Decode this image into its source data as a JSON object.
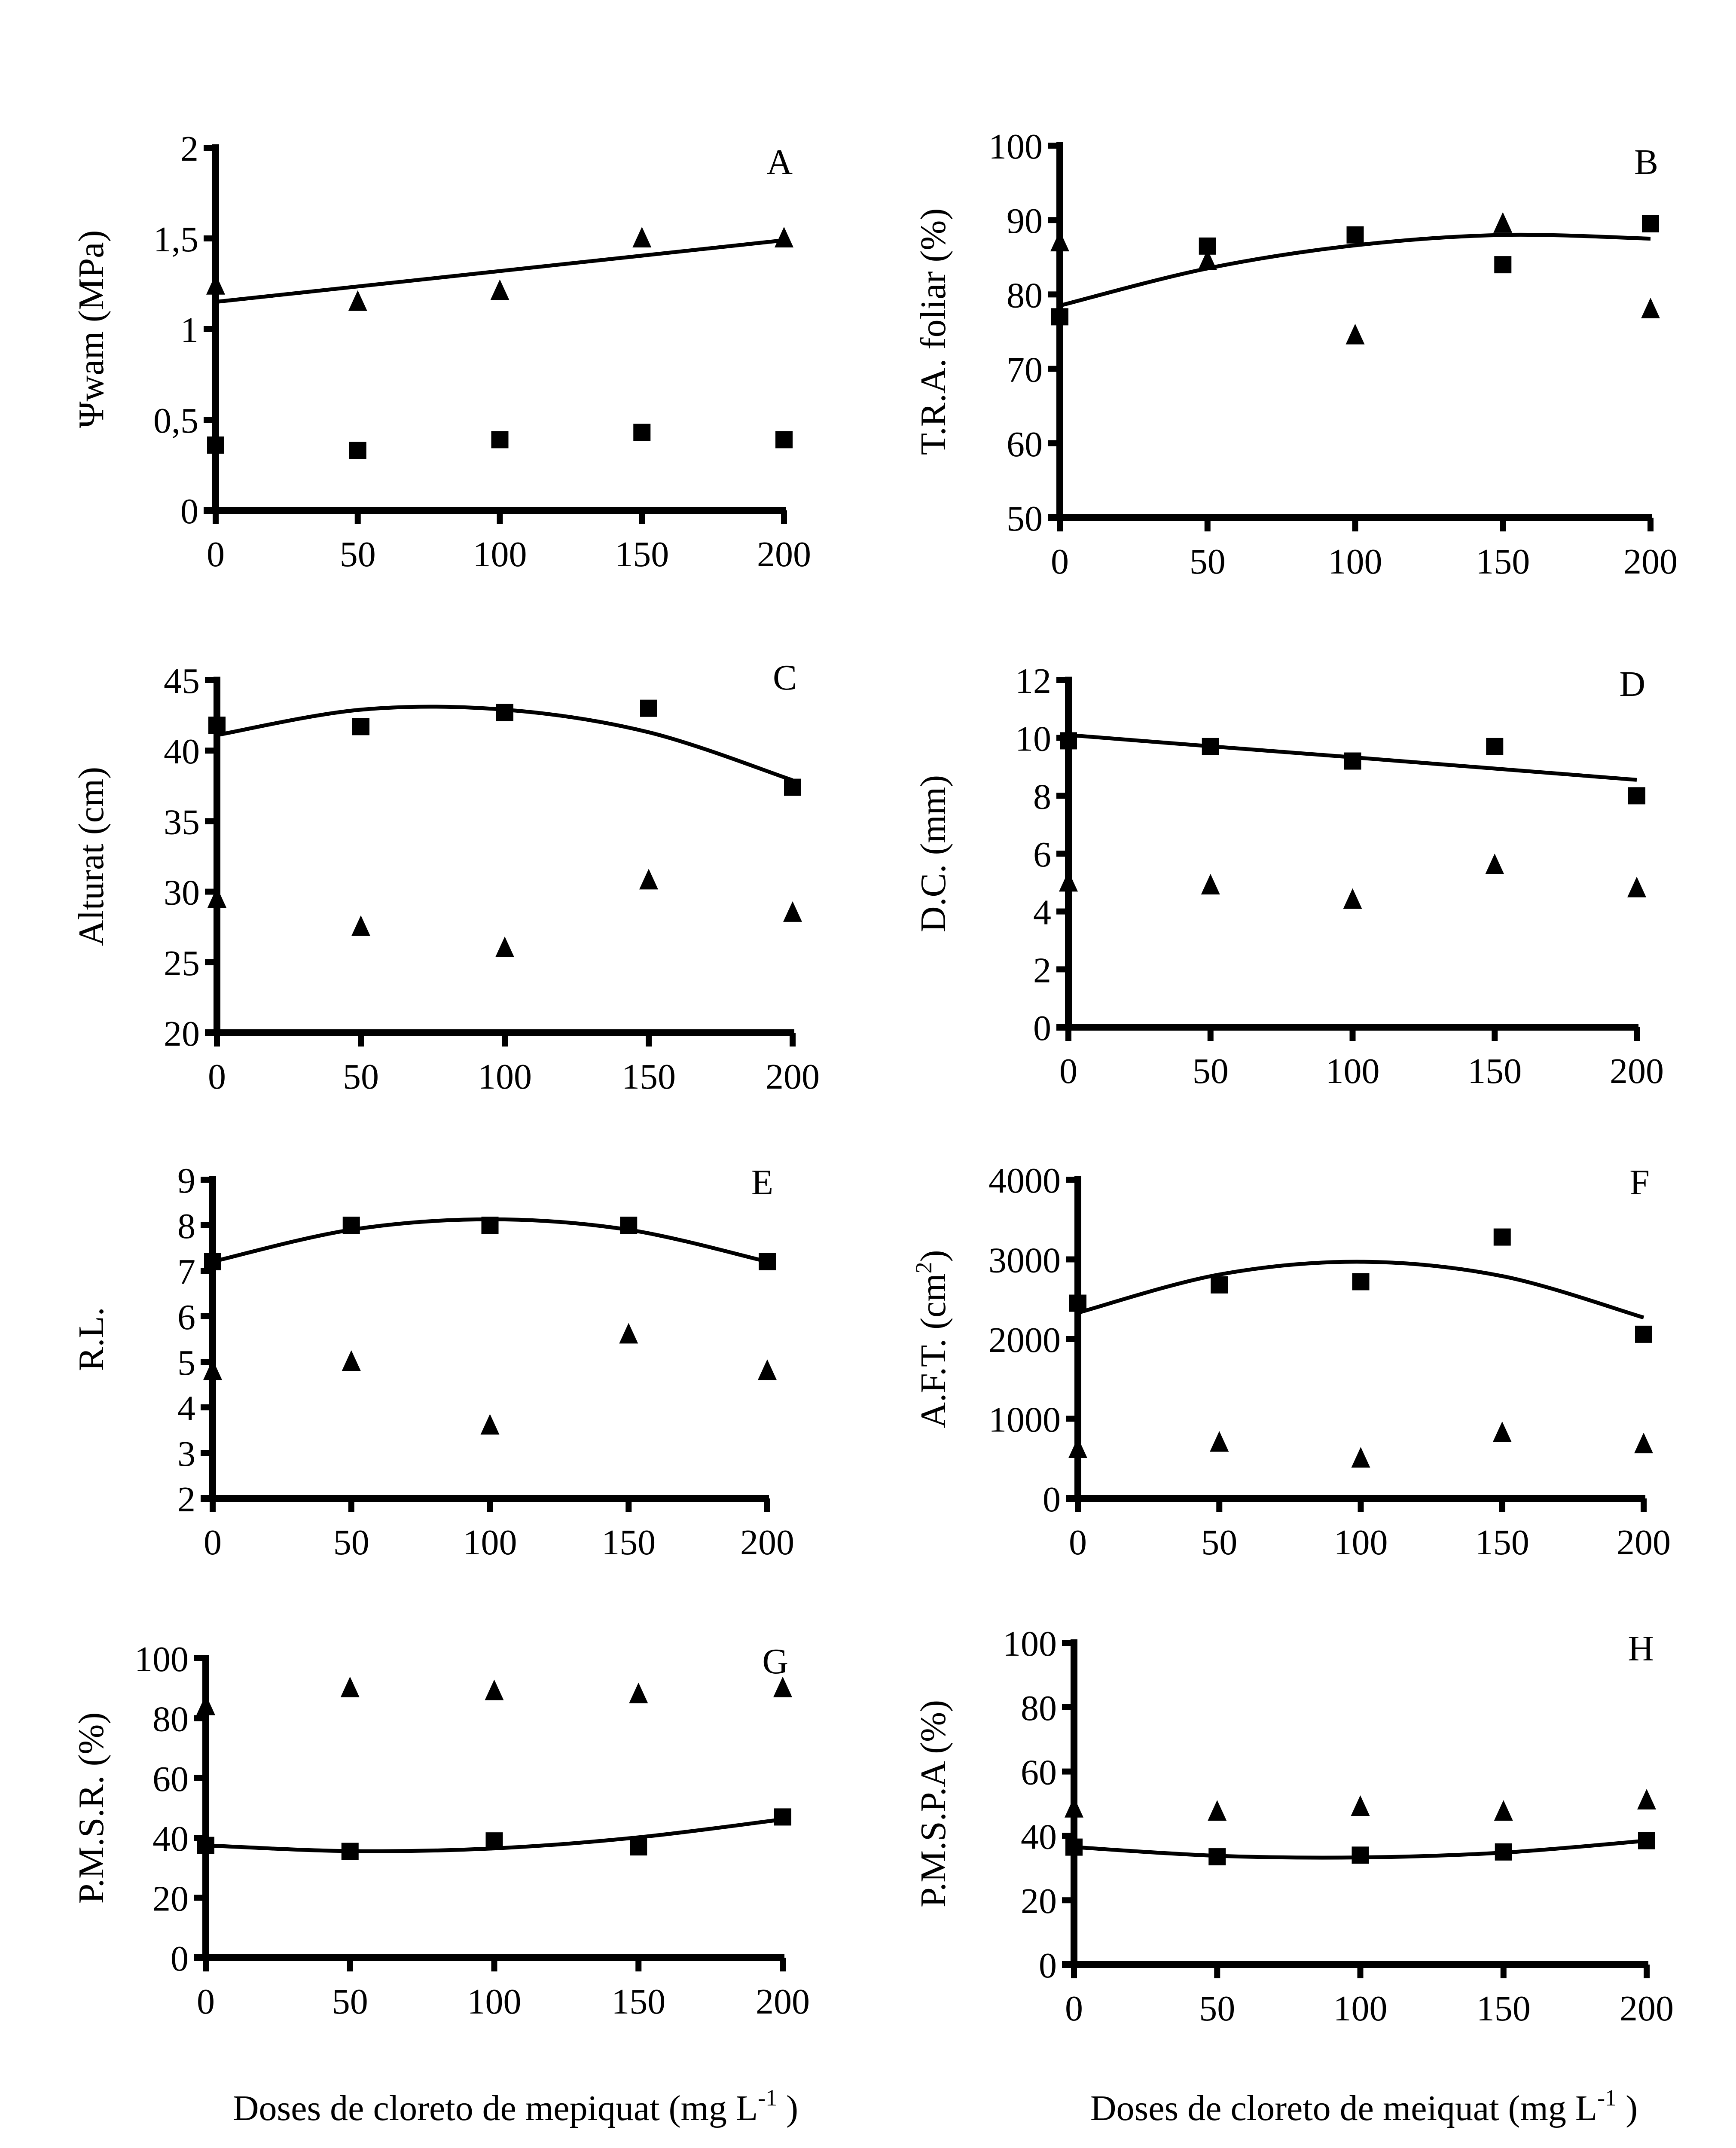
{
  "figure": {
    "x_titles": [
      {
        "text": "Doses de cloreto de mepiquat (mg L",
        "sup": "-1",
        "close": " )"
      },
      {
        "text": "Doses de cloreto de meiquat (mg L",
        "sup": "-1",
        "close": " )"
      }
    ]
  },
  "chart_data": [
    {
      "panel": "A",
      "type": "scatter",
      "ylabel": "Ψwam (MPa)",
      "x": [
        0,
        50,
        100,
        150,
        200
      ],
      "xticks": [
        "0",
        "50",
        "100",
        "150",
        "200"
      ],
      "ylim": [
        0,
        2
      ],
      "yticks": [
        "0",
        "0,5",
        "1",
        "1,5",
        "2"
      ],
      "ytick_values": [
        0,
        0.5,
        1,
        1.5,
        2
      ],
      "series": [
        {
          "name": "triangle",
          "marker": "triangle",
          "values": [
            1.24,
            1.15,
            1.21,
            1.5,
            1.5
          ]
        },
        {
          "name": "square",
          "marker": "square",
          "values": [
            0.36,
            0.33,
            0.39,
            0.43,
            0.39
          ]
        }
      ],
      "fit": {
        "series": "triangle",
        "kind": "linear",
        "values": [
          1.15,
          1.235,
          1.32,
          1.405,
          1.49
        ]
      },
      "grid": false
    },
    {
      "panel": "B",
      "type": "scatter",
      "ylabel": "T.R.A. foliar (%)",
      "x": [
        0,
        50,
        100,
        150,
        200
      ],
      "xticks": [
        "0",
        "50",
        "100",
        "150",
        "200"
      ],
      "ylim": [
        50,
        100
      ],
      "yticks": [
        "50",
        "60",
        "70",
        "80",
        "90",
        "100"
      ],
      "ytick_values": [
        50,
        60,
        70,
        80,
        90,
        100
      ],
      "series": [
        {
          "name": "square",
          "marker": "square",
          "values": [
            77,
            86.5,
            88,
            84,
            89.5
          ]
        },
        {
          "name": "triangle",
          "marker": "triangle",
          "values": [
            87,
            84.5,
            74.5,
            89.5,
            78
          ]
        }
      ],
      "fit": {
        "series": "square",
        "kind": "quadratic",
        "values": [
          78.5,
          83.5,
          86.6,
          88,
          87.5
        ]
      },
      "grid": false
    },
    {
      "panel": "C",
      "type": "scatter",
      "ylabel": "Alturat (cm)",
      "x": [
        0,
        50,
        100,
        150,
        200
      ],
      "xticks": [
        "0",
        "50",
        "100",
        "150",
        "200"
      ],
      "ylim": [
        20,
        45
      ],
      "yticks": [
        "20",
        "25",
        "30",
        "35",
        "40",
        "45"
      ],
      "ytick_values": [
        20,
        25,
        30,
        35,
        40,
        45
      ],
      "series": [
        {
          "name": "square",
          "marker": "square",
          "values": [
            41.8,
            41.7,
            42.7,
            43,
            37.4
          ]
        },
        {
          "name": "triangle",
          "marker": "triangle",
          "values": [
            29.5,
            27.5,
            26,
            30.8,
            28.5
          ]
        }
      ],
      "fit": {
        "series": "square",
        "kind": "quadratic",
        "values": [
          41.1,
          42.9,
          42.9,
          41.3,
          37.9
        ]
      },
      "grid": false
    },
    {
      "panel": "D",
      "type": "scatter",
      "ylabel": "D.C. (mm)",
      "x": [
        0,
        50,
        100,
        150,
        200
      ],
      "xticks": [
        "0",
        "50",
        "100",
        "150",
        "200"
      ],
      "ylim": [
        0,
        12
      ],
      "yticks": [
        "0",
        "2",
        "4",
        "6",
        "8",
        "10",
        "12"
      ],
      "ytick_values": [
        0,
        2,
        4,
        6,
        8,
        10,
        12
      ],
      "series": [
        {
          "name": "square",
          "marker": "square",
          "values": [
            9.9,
            9.7,
            9.2,
            9.7,
            8.0
          ]
        },
        {
          "name": "triangle",
          "marker": "triangle",
          "values": [
            5.0,
            4.9,
            4.4,
            5.6,
            4.8
          ]
        }
      ],
      "fit": {
        "series": "square",
        "kind": "linear",
        "values": [
          10.1,
          9.71,
          9.33,
          8.94,
          8.55
        ]
      },
      "grid": false
    },
    {
      "panel": "E",
      "type": "scatter",
      "ylabel": "R.L.",
      "x": [
        0,
        50,
        100,
        150,
        200
      ],
      "xticks": [
        "0",
        "50",
        "100",
        "150",
        "200"
      ],
      "ylim": [
        2,
        9
      ],
      "yticks": [
        "2",
        "3",
        "4",
        "5",
        "6",
        "7",
        "8",
        "9"
      ],
      "ytick_values": [
        2,
        3,
        4,
        5,
        6,
        7,
        8,
        9
      ],
      "series": [
        {
          "name": "square",
          "marker": "square",
          "values": [
            7.2,
            8.0,
            8.0,
            8.0,
            7.2
          ]
        },
        {
          "name": "triangle",
          "marker": "triangle",
          "values": [
            4.8,
            5.0,
            3.6,
            5.6,
            4.8
          ]
        }
      ],
      "fit": {
        "series": "square",
        "kind": "quadratic",
        "values": [
          7.2,
          7.9,
          8.13,
          7.9,
          7.2
        ]
      },
      "grid": false
    },
    {
      "panel": "F",
      "type": "scatter",
      "ylabel": "A.F.T. (cm",
      "ylabel_sup": "2",
      "ylabel_close": ")",
      "x": [
        0,
        50,
        100,
        150,
        200
      ],
      "xticks": [
        "0",
        "50",
        "100",
        "150",
        "200"
      ],
      "ylim": [
        0,
        4000
      ],
      "yticks": [
        "0",
        "1000",
        "2000",
        "3000",
        "4000"
      ],
      "ytick_values": [
        0,
        1000,
        2000,
        3000,
        4000
      ],
      "series": [
        {
          "name": "square",
          "marker": "square",
          "values": [
            2450,
            2680,
            2720,
            3280,
            2060
          ]
        },
        {
          "name": "triangle",
          "marker": "triangle",
          "values": [
            620,
            700,
            500,
            820,
            680
          ]
        }
      ],
      "fit": {
        "series": "square",
        "kind": "quadratic",
        "values": [
          2330,
          2810,
          2970,
          2790,
          2270
        ]
      },
      "grid": false
    },
    {
      "panel": "G",
      "type": "scatter",
      "ylabel": "P.M.S.R. (%)",
      "x": [
        0,
        50,
        100,
        150,
        200
      ],
      "xticks": [
        "0",
        "50",
        "100",
        "150",
        "200"
      ],
      "ylim": [
        0,
        100
      ],
      "yticks": [
        "0",
        "20",
        "40",
        "60",
        "80",
        "100"
      ],
      "ytick_values": [
        0,
        20,
        40,
        60,
        80,
        100
      ],
      "series": [
        {
          "name": "triangle",
          "marker": "triangle",
          "values": [
            84,
            90,
            89,
            88,
            90
          ]
        },
        {
          "name": "square",
          "marker": "square",
          "values": [
            37.5,
            35.5,
            39,
            37,
            47
          ]
        }
      ],
      "fit": {
        "series": "square",
        "kind": "quadratic",
        "values": [
          37.5,
          35.6,
          36.5,
          40.2,
          46.2
        ]
      },
      "grid": false
    },
    {
      "panel": "H",
      "type": "scatter",
      "ylabel": "P.M.S.P.A (%)",
      "x": [
        0,
        50,
        100,
        150,
        200
      ],
      "xticks": [
        "0",
        "50",
        "100",
        "150",
        "200"
      ],
      "ylim": [
        0,
        100
      ],
      "yticks": [
        "0",
        "20",
        "40",
        "60",
        "80",
        "100"
      ],
      "ytick_values": [
        0,
        20,
        40,
        60,
        80,
        100
      ],
      "series": [
        {
          "name": "triangle",
          "marker": "triangle",
          "values": [
            48.5,
            47.5,
            49,
            47.5,
            51
          ]
        },
        {
          "name": "square",
          "marker": "square",
          "values": [
            36.5,
            33.5,
            34,
            35,
            38.5
          ]
        }
      ],
      "fit": {
        "series": "square",
        "kind": "quadratic",
        "values": [
          36.5,
          33.8,
          33.3,
          34.8,
          38.5
        ]
      },
      "grid": false
    }
  ]
}
